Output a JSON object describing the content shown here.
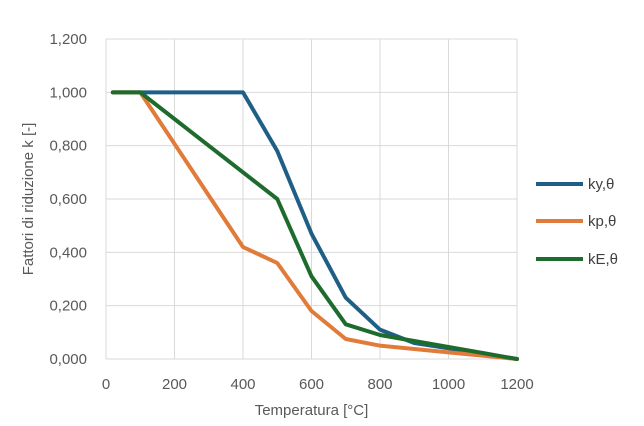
{
  "chart_data": {
    "type": "line",
    "title": "",
    "xlabel": "Temperatura [°C]",
    "ylabel": "Fattori di riduzione k [-]",
    "xlim": [
      0,
      1200
    ],
    "ylim": [
      0,
      1.2
    ],
    "xticks": [
      0,
      200,
      400,
      600,
      800,
      1000,
      1200
    ],
    "yticks": [
      0,
      0.2,
      0.4,
      0.6,
      0.8,
      1.0,
      1.2
    ],
    "xtick_labels": [
      "0",
      "200",
      "400",
      "600",
      "800",
      "1000",
      "1200"
    ],
    "ytick_labels": [
      "0,000",
      "0,200",
      "0,400",
      "0,600",
      "0,800",
      "1,000",
      "1,200"
    ],
    "grid": true,
    "legend_position": "right",
    "series": [
      {
        "name": "ky,θ",
        "color": "#1f5f86",
        "x": [
          20,
          100,
          200,
          300,
          400,
          500,
          600,
          700,
          800,
          900,
          1000,
          1100,
          1200
        ],
        "y": [
          1.0,
          1.0,
          1.0,
          1.0,
          1.0,
          0.78,
          0.47,
          0.23,
          0.11,
          0.06,
          0.04,
          0.02,
          0.0
        ]
      },
      {
        "name": "kp,θ",
        "color": "#e07b39",
        "x": [
          20,
          100,
          200,
          300,
          400,
          500,
          600,
          700,
          800,
          900,
          1000,
          1100,
          1200
        ],
        "y": [
          1.0,
          1.0,
          0.807,
          0.613,
          0.42,
          0.36,
          0.18,
          0.075,
          0.05,
          0.0375,
          0.025,
          0.0125,
          0.0
        ]
      },
      {
        "name": "kE,θ",
        "color": "#1e6b2e",
        "x": [
          20,
          100,
          200,
          300,
          400,
          500,
          600,
          700,
          800,
          900,
          1000,
          1100,
          1200
        ],
        "y": [
          1.0,
          1.0,
          0.9,
          0.8,
          0.7,
          0.6,
          0.31,
          0.13,
          0.09,
          0.0675,
          0.045,
          0.0225,
          0.0
        ]
      }
    ]
  }
}
